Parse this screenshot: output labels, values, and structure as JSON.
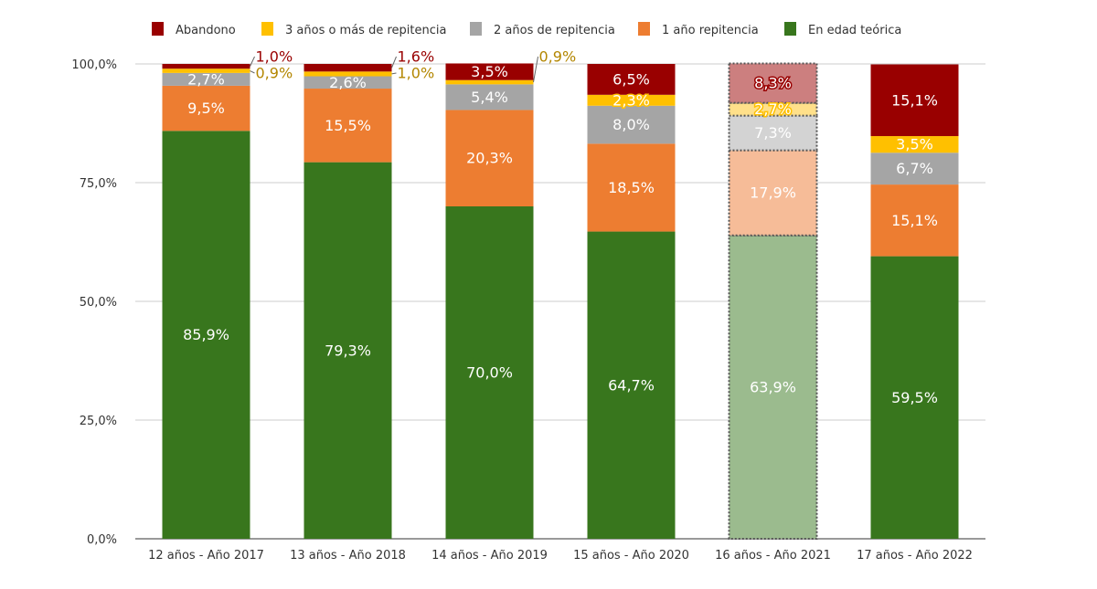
{
  "chart_data": {
    "type": "bar",
    "stacked": true,
    "title": "",
    "xlabel": "",
    "ylabel": "",
    "ylim": [
      0,
      100
    ],
    "yticks": [
      "0,0%",
      "25,0%",
      "50,0%",
      "75,0%",
      "100,0%"
    ],
    "grid": true,
    "legend_position": "top",
    "categories": [
      "12 años - Año 2017",
      "13 años - Año 2018",
      "14 años - Año 2019",
      "15 años - Año 2020",
      "16 años - Año 2021",
      "17 años - Año 2022"
    ],
    "highlighted_faded_category": "16 años - Año 2021",
    "series": [
      {
        "name": "En edad teórica",
        "color": "#38761d",
        "faded_color": "#9bbb8e",
        "values": [
          85.9,
          79.3,
          70.0,
          64.7,
          63.9,
          59.5
        ],
        "labels": [
          "85,9%",
          "79,3%",
          "70,0%",
          "64,7%",
          "63,9%",
          "59,5%"
        ]
      },
      {
        "name": "1 año repitencia",
        "color": "#ed7d31",
        "faded_color": "#f6bc98",
        "values": [
          9.5,
          15.5,
          20.3,
          18.5,
          17.9,
          15.1
        ],
        "labels": [
          "9,5%",
          "15,5%",
          "20,3%",
          "18,5%",
          "17,9%",
          "15,1%"
        ]
      },
      {
        "name": "2 años de repitencia",
        "color": "#a5a5a5",
        "faded_color": "#d3d3d3",
        "values": [
          2.7,
          2.6,
          5.4,
          8.0,
          7.3,
          6.7
        ],
        "labels": [
          "2,7%",
          "2,6%",
          "5,4%",
          "8,0%",
          "7,3%",
          "6,7%"
        ]
      },
      {
        "name": "3 años o más de repitencia",
        "color": "#ffc000",
        "faded_color": "#ffe08a",
        "values": [
          0.9,
          1.0,
          0.9,
          2.3,
          2.7,
          3.5
        ],
        "labels": [
          "0,9%",
          "1,0%",
          "0,9%",
          "2,3%",
          "2,7%",
          "3,5%"
        ]
      },
      {
        "name": "Abandono",
        "color": "#990000",
        "faded_color": "#cc7f7f",
        "values": [
          1.0,
          1.6,
          3.5,
          6.5,
          8.3,
          15.1
        ],
        "labels": [
          "1,0%",
          "1,6%",
          "3,5%",
          "6,5%",
          "8,3%",
          "15,1%"
        ]
      }
    ],
    "legend_order": [
      "Abandono",
      "3 años o más de repitencia",
      "2 años de repitencia",
      "1 año repitencia",
      "En edad teórica"
    ]
  }
}
